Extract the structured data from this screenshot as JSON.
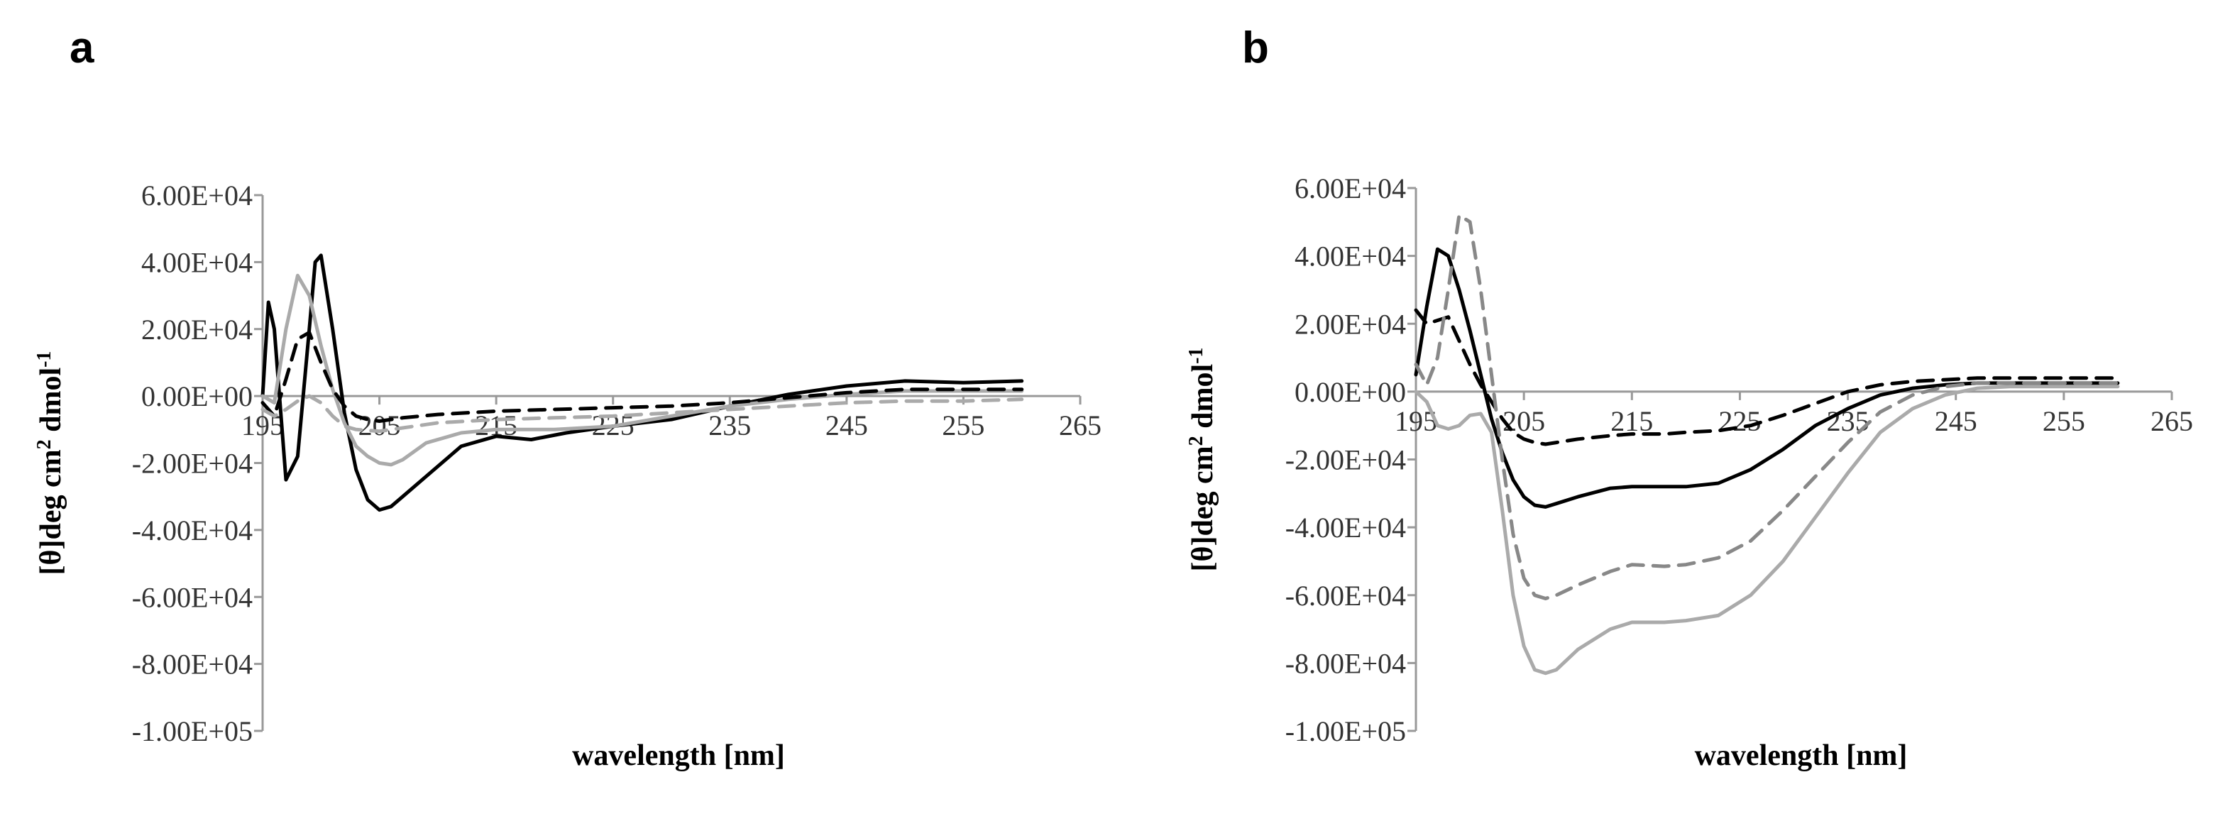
{
  "chart_data": [
    {
      "panel": "a",
      "type": "line",
      "xlabel": "wavelength [nm]",
      "ylabel_main": "[θ]deg cm",
      "ylabel_sup1": "2",
      "ylabel_mid": " dmol",
      "ylabel_sup2": "-1",
      "xlim": [
        195,
        265
      ],
      "ylim": [
        -100000,
        60000
      ],
      "xticks": [
        "195",
        "205",
        "215",
        "225",
        "235",
        "245",
        "255",
        "265"
      ],
      "yticks": [
        "6.00E+04",
        "4.00E+04",
        "2.00E+04",
        "0.00E+00",
        "-2.00E+04",
        "-4.00E+04",
        "-6.00E+04",
        "-8.00E+04",
        "-1.00E+05"
      ],
      "series": [
        {
          "color": "#000000",
          "dash": "solid",
          "x": [
            195,
            195.5,
            196,
            197,
            198,
            199,
            199.5,
            200,
            201,
            202,
            203,
            204,
            205,
            206,
            207,
            209,
            212,
            215,
            218,
            221,
            225,
            230,
            235,
            240,
            245,
            250,
            255,
            260
          ],
          "y": [
            0,
            28000,
            20000,
            -25000,
            -18000,
            20000,
            40000,
            42000,
            20000,
            -5000,
            -22000,
            -31000,
            -34000,
            -33000,
            -30000,
            -24000,
            -15000,
            -12000,
            -13000,
            -11000,
            -9000,
            -7000,
            -3000,
            500,
            3000,
            4500,
            4000,
            4500
          ]
        },
        {
          "color": "#aaaaaa",
          "dash": "solid",
          "x": [
            195,
            196,
            197,
            198,
            199,
            200,
            201,
            202,
            203,
            204,
            205,
            206,
            207,
            209,
            212,
            215,
            220,
            225,
            230,
            235,
            240,
            245,
            250,
            255,
            260
          ],
          "y": [
            0,
            -2000,
            20000,
            36000,
            30000,
            15000,
            2000,
            -8000,
            -15000,
            -18000,
            -20000,
            -20500,
            -19000,
            -14000,
            -11000,
            -10000,
            -10000,
            -9000,
            -6000,
            -3000,
            -1000,
            500,
            1500,
            1500,
            1500
          ]
        },
        {
          "color": "#000000",
          "dash": "dashed",
          "x": [
            195,
            196,
            197,
            198,
            199,
            200,
            201,
            202,
            203,
            204,
            205,
            207,
            210,
            215,
            220,
            225,
            230,
            235,
            240,
            245,
            250,
            255,
            260
          ],
          "y": [
            -2000,
            -6000,
            5000,
            17000,
            19000,
            10000,
            2000,
            -3000,
            -6000,
            -7000,
            -7500,
            -6500,
            -5500,
            -4500,
            -4000,
            -3500,
            -3000,
            -2000,
            -500,
            1000,
            2000,
            2000,
            2000
          ]
        },
        {
          "color": "#aaaaaa",
          "dash": "dashed",
          "x": [
            195,
            196,
            197,
            198,
            199,
            200,
            201,
            202,
            203,
            205,
            207,
            210,
            215,
            220,
            225,
            230,
            235,
            240,
            245,
            250,
            255,
            260
          ],
          "y": [
            -4000,
            -6000,
            -4000,
            -1500,
            0,
            -2000,
            -6000,
            -9000,
            -10000,
            -10500,
            -9500,
            -8000,
            -7000,
            -6500,
            -6000,
            -5000,
            -4000,
            -3000,
            -2000,
            -1500,
            -1500,
            -1000
          ]
        }
      ]
    },
    {
      "panel": "b",
      "type": "line",
      "xlabel": "wavelength [nm]",
      "ylabel_main": "[θ]deg cm",
      "ylabel_sup1": "2",
      "ylabel_mid": " dmol",
      "ylabel_sup2": "-1",
      "xlim": [
        195,
        265
      ],
      "ylim": [
        -100000,
        60000
      ],
      "xticks": [
        "195",
        "205",
        "215",
        "225",
        "235",
        "245",
        "255",
        "265"
      ],
      "yticks": [
        "6.00E+04",
        "4.00E+04",
        "2.00E+04",
        "0.00E+00",
        "-2.00E+04",
        "-4.00E+04",
        "-6.00E+04",
        "-8.00E+04",
        "-1.00E+05"
      ],
      "series": [
        {
          "color": "#000000",
          "dash": "solid",
          "x": [
            195,
            196,
            197,
            198,
            199,
            200,
            201,
            202,
            203,
            204,
            205,
            206,
            207,
            208,
            210,
            213,
            215,
            218,
            220,
            223,
            226,
            229,
            232,
            235,
            238,
            241,
            244,
            247,
            250,
            255,
            260
          ],
          "y": [
            5000,
            25000,
            42000,
            40000,
            30000,
            18000,
            5000,
            -8000,
            -18000,
            -26000,
            -31000,
            -33500,
            -34000,
            -33000,
            -31000,
            -28500,
            -28000,
            -28000,
            -28000,
            -27000,
            -23000,
            -17000,
            -10000,
            -5000,
            -1000,
            1000,
            2000,
            2500,
            2500,
            2500,
            2500
          ]
        },
        {
          "color": "#aaaaaa",
          "dash": "solid",
          "x": [
            195,
            196,
            197,
            198,
            199,
            200,
            201,
            202,
            203,
            204,
            205,
            206,
            207,
            208,
            210,
            213,
            215,
            218,
            220,
            223,
            226,
            229,
            232,
            235,
            238,
            241,
            244,
            247,
            250,
            255,
            260
          ],
          "y": [
            0,
            -3000,
            -10000,
            -11000,
            -10000,
            -7000,
            -6500,
            -12000,
            -35000,
            -60000,
            -75000,
            -82000,
            -83000,
            -82000,
            -76000,
            -70000,
            -68000,
            -68000,
            -67500,
            -66000,
            -60000,
            -50000,
            -37000,
            -24000,
            -12000,
            -5000,
            -1000,
            1000,
            1500,
            1500,
            1500
          ]
        },
        {
          "color": "#000000",
          "dash": "dashed",
          "x": [
            195,
            196,
            197,
            198,
            199,
            200,
            201,
            202,
            203,
            204,
            205,
            206,
            207,
            208,
            210,
            213,
            215,
            218,
            220,
            223,
            226,
            229,
            232,
            235,
            238,
            241,
            244,
            247,
            250,
            255,
            260
          ],
          "y": [
            24000,
            20000,
            21000,
            22000,
            15000,
            8000,
            2000,
            -3000,
            -8000,
            -12000,
            -14000,
            -15000,
            -15500,
            -15000,
            -14000,
            -13000,
            -12500,
            -12500,
            -12000,
            -11500,
            -10000,
            -7000,
            -3500,
            0,
            2000,
            3000,
            3500,
            4000,
            4000,
            4000,
            4000
          ]
        },
        {
          "color": "#888888",
          "dash": "dashed",
          "x": [
            195,
            196,
            197,
            198,
            199,
            200,
            201,
            202,
            203,
            204,
            205,
            206,
            207,
            208,
            210,
            213,
            215,
            218,
            220,
            223,
            226,
            229,
            232,
            235,
            238,
            241,
            244,
            247,
            250,
            255,
            260
          ],
          "y": [
            8000,
            2000,
            10000,
            30000,
            52000,
            50000,
            30000,
            5000,
            -20000,
            -42000,
            -55000,
            -60000,
            -61000,
            -60000,
            -57000,
            -53000,
            -51000,
            -51500,
            -51000,
            -49000,
            -44000,
            -35000,
            -25000,
            -15000,
            -6000,
            -1000,
            1500,
            2500,
            2500,
            2500,
            2500
          ]
        }
      ]
    }
  ]
}
